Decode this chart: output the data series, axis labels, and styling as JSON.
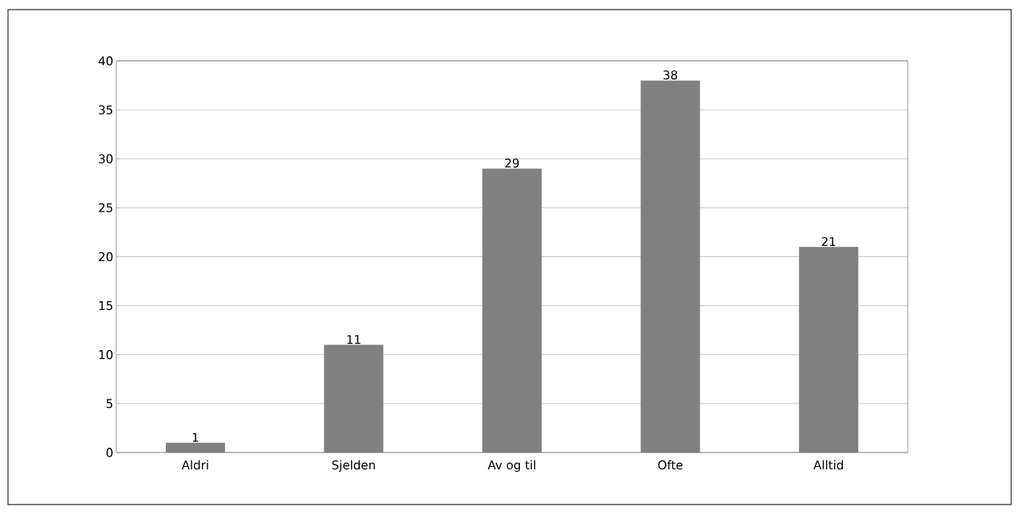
{
  "chart_data": {
    "type": "bar",
    "categories": [
      "Aldri",
      "Sjelden",
      "Av og til",
      "Ofte",
      "Alltid"
    ],
    "values": [
      1,
      11,
      29,
      38,
      21
    ],
    "color": "#808080",
    "ylim": [
      0,
      40
    ],
    "yticks": [
      0,
      5,
      10,
      15,
      20,
      25,
      30,
      35,
      40
    ],
    "grid": "y",
    "data_labels": true
  }
}
